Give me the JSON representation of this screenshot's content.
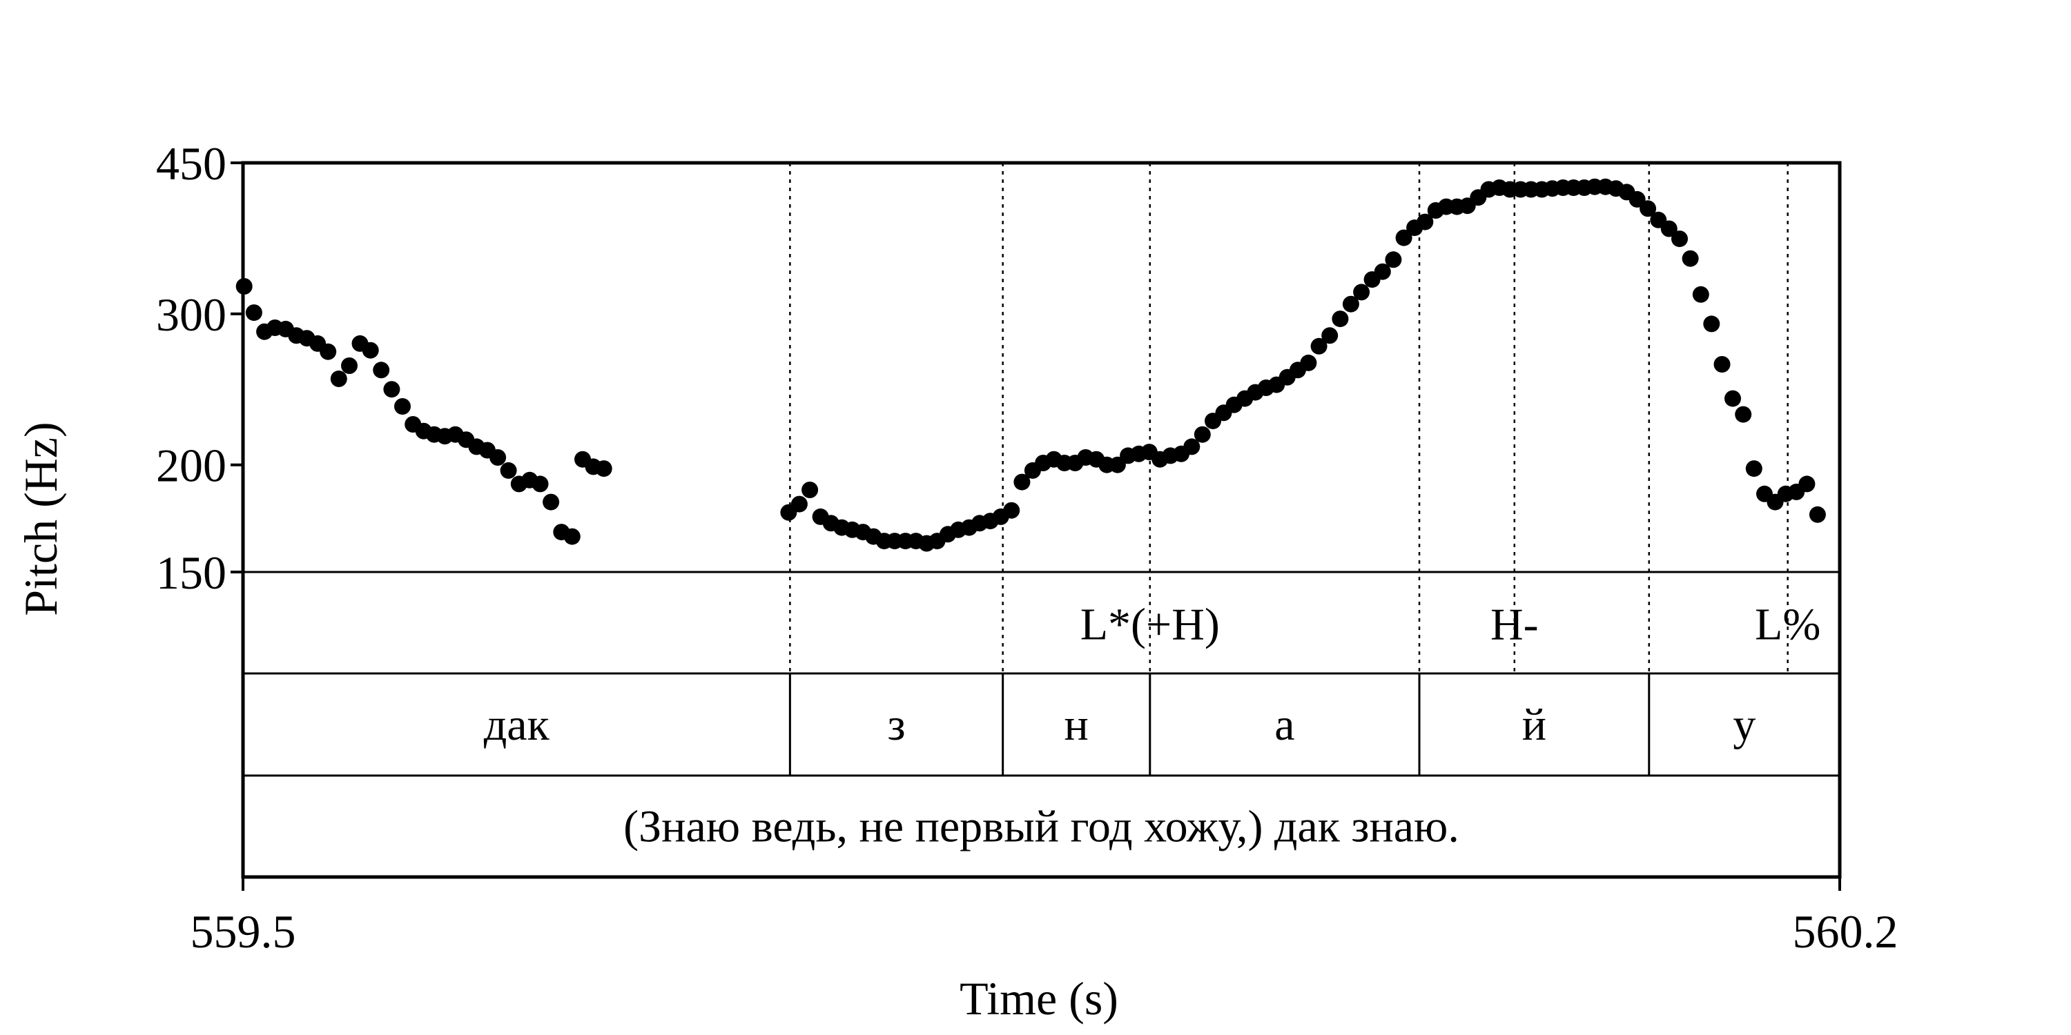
{
  "chart_data": {
    "type": "scatter",
    "title": "",
    "xlabel": "Time (s)",
    "ylabel": "Pitch (Hz)",
    "xlim": [
      559.5,
      560.2
    ],
    "ylim": [
      150,
      450
    ],
    "y_scale": "log",
    "x_ticks": [
      "559.5",
      "560.2"
    ],
    "y_ticks": [
      {
        "value": 450,
        "label": "450"
      },
      {
        "value": 300,
        "label": "300"
      },
      {
        "value": 200,
        "label": "200"
      },
      {
        "value": 150,
        "label": "150"
      }
    ],
    "grid": false,
    "marker_color": "#000000",
    "boundaries": [
      559.7398,
      559.8331,
      559.8976,
      560.0157,
      560.0574,
      560.1164,
      560.1772
    ],
    "tones": [
      {
        "time": 559.8976,
        "label": "L*(+H)"
      },
      {
        "time": 560.0574,
        "label": "H-"
      },
      {
        "time": 560.1772,
        "label": "L%"
      }
    ],
    "segments": [
      {
        "start": 559.5,
        "end": 559.7398,
        "label": "дак"
      },
      {
        "start": 559.7398,
        "end": 559.8331,
        "label": "з"
      },
      {
        "start": 559.8331,
        "end": 559.8976,
        "label": "н"
      },
      {
        "start": 559.8976,
        "end": 560.0157,
        "label": "а"
      },
      {
        "start": 560.0157,
        "end": 560.1164,
        "label": "й"
      },
      {
        "start": 560.1164,
        "end": 560.2,
        "label": "у"
      }
    ],
    "sentence": "(Знаю ведь, не первый год хожу,) дак знаю.",
    "points": [
      [
        559.5005,
        323
      ],
      [
        559.5048,
        301
      ],
      [
        559.5094,
        286
      ],
      [
        559.514,
        289
      ],
      [
        559.5187,
        288
      ],
      [
        559.5234,
        283
      ],
      [
        559.528,
        281
      ],
      [
        559.5327,
        277
      ],
      [
        559.5373,
        271
      ],
      [
        559.542,
        252
      ],
      [
        559.5466,
        261
      ],
      [
        559.5513,
        277
      ],
      [
        559.5559,
        272
      ],
      [
        559.5606,
        258
      ],
      [
        559.5652,
        245
      ],
      [
        559.5699,
        234
      ],
      [
        559.5745,
        223
      ],
      [
        559.5792,
        219
      ],
      [
        559.5838,
        217
      ],
      [
        559.5885,
        216
      ],
      [
        559.5931,
        217
      ],
      [
        559.5978,
        214
      ],
      [
        559.6024,
        210
      ],
      [
        559.6071,
        208
      ],
      [
        559.6117,
        204
      ],
      [
        559.6164,
        197
      ],
      [
        559.621,
        190
      ],
      [
        559.6257,
        192
      ],
      [
        559.6303,
        190
      ],
      [
        559.635,
        181
      ],
      [
        559.6396,
        167
      ],
      [
        559.6443,
        165
      ],
      [
        559.6489,
        203
      ],
      [
        559.6536,
        199
      ],
      [
        559.6582,
        198
      ],
      [
        559.7392,
        176
      ],
      [
        559.7439,
        180
      ],
      [
        559.7485,
        187
      ],
      [
        559.7532,
        174
      ],
      [
        559.7578,
        171
      ],
      [
        559.7625,
        169
      ],
      [
        559.7671,
        168
      ],
      [
        559.7718,
        167
      ],
      [
        559.7764,
        165
      ],
      [
        559.7811,
        163
      ],
      [
        559.7857,
        163
      ],
      [
        559.7904,
        163
      ],
      [
        559.795,
        163
      ],
      [
        559.7997,
        162
      ],
      [
        559.8043,
        163
      ],
      [
        559.809,
        166
      ],
      [
        559.8136,
        168
      ],
      [
        559.8183,
        169
      ],
      [
        559.8229,
        171
      ],
      [
        559.8276,
        172
      ],
      [
        559.8322,
        174
      ],
      [
        559.8369,
        177
      ],
      [
        559.8415,
        191
      ],
      [
        559.8462,
        197
      ],
      [
        559.8508,
        201
      ],
      [
        559.8555,
        203
      ],
      [
        559.8601,
        201
      ],
      [
        559.8648,
        201
      ],
      [
        559.8694,
        204
      ],
      [
        559.8741,
        203
      ],
      [
        559.8787,
        200
      ],
      [
        559.8834,
        200
      ],
      [
        559.888,
        205
      ],
      [
        559.8927,
        206
      ],
      [
        559.8973,
        207
      ],
      [
        559.902,
        203
      ],
      [
        559.9066,
        205
      ],
      [
        559.9113,
        206
      ],
      [
        559.9159,
        210
      ],
      [
        559.9206,
        217
      ],
      [
        559.9252,
        225
      ],
      [
        559.9299,
        230
      ],
      [
        559.9345,
        235
      ],
      [
        559.9392,
        239
      ],
      [
        559.9438,
        243
      ],
      [
        559.9485,
        246
      ],
      [
        559.9531,
        248
      ],
      [
        559.9578,
        253
      ],
      [
        559.9624,
        258
      ],
      [
        559.9671,
        263
      ],
      [
        559.9717,
        275
      ],
      [
        559.9764,
        283
      ],
      [
        559.981,
        296
      ],
      [
        559.9857,
        308
      ],
      [
        559.9903,
        318
      ],
      [
        559.995,
        329
      ],
      [
        559.9996,
        336
      ],
      [
        560.0043,
        347
      ],
      [
        560.0089,
        368
      ],
      [
        560.0136,
        378
      ],
      [
        560.0182,
        384
      ],
      [
        560.0229,
        396
      ],
      [
        560.0275,
        400
      ],
      [
        560.0322,
        400
      ],
      [
        560.0368,
        401
      ],
      [
        560.0415,
        410
      ],
      [
        560.0461,
        419
      ],
      [
        560.0508,
        421
      ],
      [
        560.0554,
        419
      ],
      [
        560.0601,
        419
      ],
      [
        560.0647,
        419
      ],
      [
        560.0694,
        419
      ],
      [
        560.074,
        420
      ],
      [
        560.0787,
        421
      ],
      [
        560.0833,
        421
      ],
      [
        560.088,
        421
      ],
      [
        560.0926,
        422
      ],
      [
        560.0973,
        422
      ],
      [
        560.1019,
        420
      ],
      [
        560.1066,
        416
      ],
      [
        560.1112,
        408
      ],
      [
        560.1159,
        398
      ],
      [
        560.1205,
        386
      ],
      [
        560.1252,
        377
      ],
      [
        560.1298,
        367
      ],
      [
        560.1345,
        348
      ],
      [
        560.1391,
        316
      ],
      [
        560.1438,
        292
      ],
      [
        560.1484,
        262
      ],
      [
        560.1531,
        239
      ],
      [
        560.1577,
        229
      ],
      [
        560.1624,
        198
      ],
      [
        560.167,
        185
      ],
      [
        560.1717,
        181
      ],
      [
        560.1763,
        185
      ],
      [
        560.181,
        186
      ],
      [
        560.1856,
        190
      ],
      [
        560.1903,
        175
      ]
    ]
  }
}
